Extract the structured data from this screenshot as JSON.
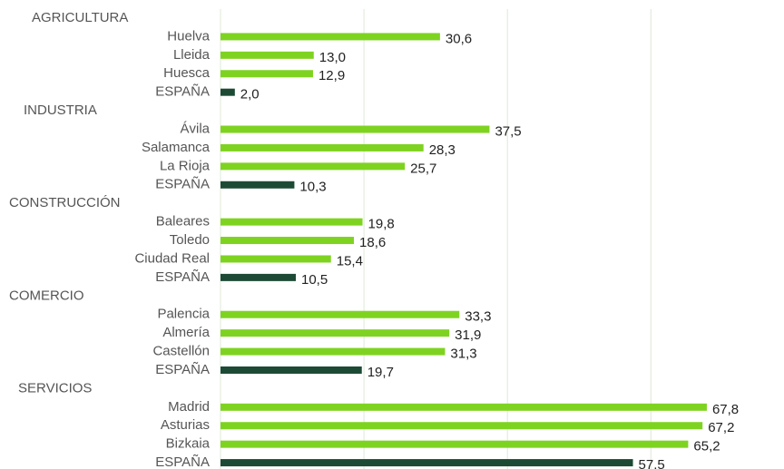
{
  "chart_data": {
    "type": "bar",
    "orientation": "horizontal",
    "groups": [
      {
        "name": "AGRICULTURA",
        "categories": [
          "Huelva",
          "Lleida",
          "Huesca",
          "ESPAÑA"
        ],
        "values": [
          30.6,
          13.0,
          12.9,
          2.0
        ],
        "value_labels": [
          "30,6",
          "13,0",
          "12,9",
          "2,0"
        ],
        "colors": [
          "#7ed321",
          "#7ed321",
          "#7ed321",
          "#1d4a35"
        ]
      },
      {
        "name": "INDUSTRIA",
        "categories": [
          "Ávila",
          "Salamanca",
          "La Rioja",
          "ESPAÑA"
        ],
        "values": [
          37.5,
          28.3,
          25.7,
          10.3
        ],
        "value_labels": [
          "37,5",
          "28,3",
          "25,7",
          "10,3"
        ],
        "colors": [
          "#7ed321",
          "#7ed321",
          "#7ed321",
          "#1d4a35"
        ]
      },
      {
        "name": "CONSTRUCCIÓN",
        "categories": [
          "Baleares",
          "Toledo",
          "Ciudad Real",
          "ESPAÑA"
        ],
        "values": [
          19.8,
          18.6,
          15.4,
          10.5
        ],
        "value_labels": [
          "19,8",
          "18,6",
          "15,4",
          "10,5"
        ],
        "colors": [
          "#7ed321",
          "#7ed321",
          "#7ed321",
          "#1d4a35"
        ]
      },
      {
        "name": "COMERCIO",
        "categories": [
          "Palencia",
          "Almería",
          "Castellón",
          "ESPAÑA"
        ],
        "values": [
          33.3,
          31.9,
          31.3,
          19.7
        ],
        "value_labels": [
          "33,3",
          "31,9",
          "31,3",
          "19,7"
        ],
        "colors": [
          "#7ed321",
          "#7ed321",
          "#7ed321",
          "#1d4a35"
        ]
      },
      {
        "name": "SERVICIOS",
        "categories": [
          "Madrid",
          "Asturias",
          "Bizkaia",
          "ESPAÑA"
        ],
        "values": [
          67.8,
          67.2,
          65.2,
          57.5
        ],
        "value_labels": [
          "67,8",
          "67,2",
          "65,2",
          "57,5"
        ],
        "colors": [
          "#7ed321",
          "#7ed321",
          "#7ed321",
          "#1d4a35"
        ]
      }
    ],
    "xlim": [
      0,
      78
    ],
    "xticks": [
      0,
      20,
      40,
      60
    ],
    "grid": true
  }
}
